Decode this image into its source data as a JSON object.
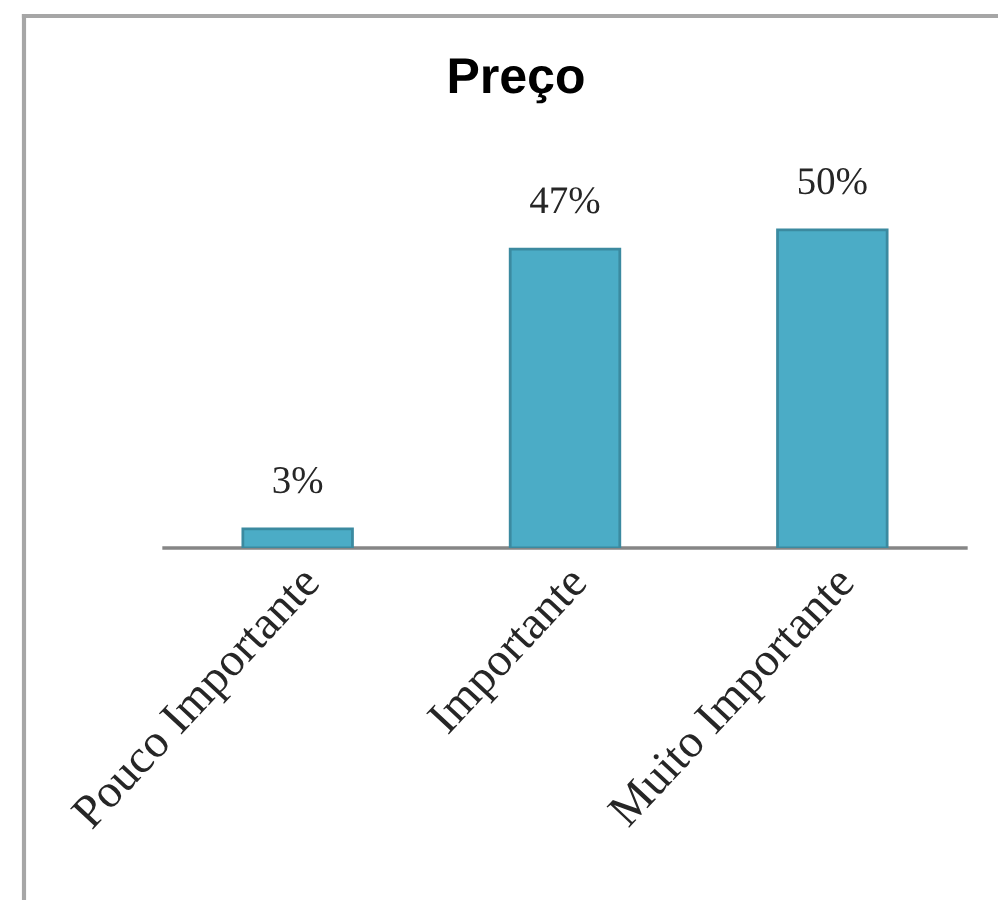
{
  "chart_data": {
    "type": "bar",
    "title": "Preço",
    "categories": [
      "Pouco Importante",
      "Importante",
      "Muito Importante"
    ],
    "values": [
      3,
      47,
      50
    ],
    "color": "#4bacc6",
    "value_labels": [
      "3%",
      "47%",
      "50%"
    ],
    "tick_labels": "x",
    "grid": false,
    "legend": false
  }
}
